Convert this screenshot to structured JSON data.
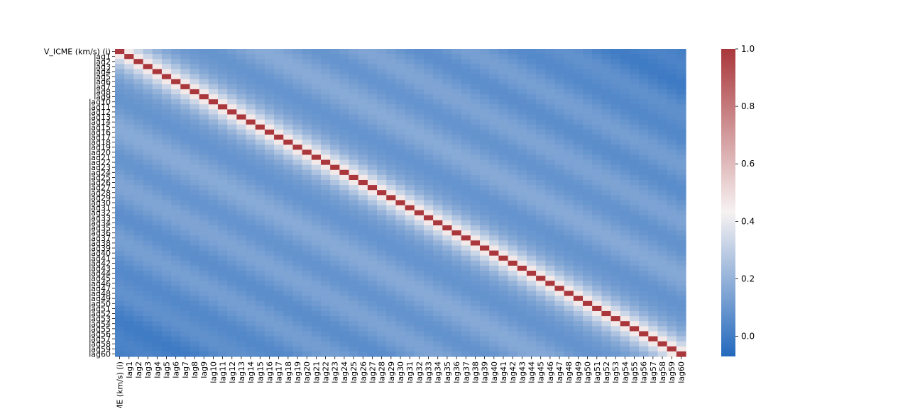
{
  "chart_data": {
    "type": "heatmap",
    "title": "",
    "xlabel": "",
    "ylabel": "",
    "labels": [
      "V_ICME (km/s) (i)",
      "lag1",
      "lag2",
      "lag3",
      "lag4",
      "lag5",
      "lag6",
      "lag7",
      "lag8",
      "lag9",
      "lag10",
      "lag11",
      "lag12",
      "lag13",
      "lag14",
      "lag15",
      "lag16",
      "lag17",
      "lag18",
      "lag19",
      "lag20",
      "lag21",
      "lag22",
      "lag23",
      "lag24",
      "lag25",
      "lag26",
      "lag27",
      "lag28",
      "lag29",
      "lag30",
      "lag31",
      "lag32",
      "lag33",
      "lag34",
      "lag35",
      "lag36",
      "lag37",
      "lag38",
      "lag39",
      "lag40",
      "lag41",
      "lag42",
      "lag43",
      "lag44",
      "lag45",
      "lag46",
      "lag47",
      "lag48",
      "lag49",
      "lag50",
      "lag51",
      "lag52",
      "lag53",
      "lag54",
      "lag55",
      "lag56",
      "lag57",
      "lag58",
      "lag59",
      "lag60"
    ],
    "values_by_distance": {
      "description_free": true,
      "lag_offset": [
        0,
        1,
        2,
        3,
        4,
        5,
        6,
        7,
        8,
        9,
        10,
        11,
        12,
        13,
        14,
        15,
        16,
        17,
        18,
        19,
        20,
        21,
        22,
        23,
        24,
        25,
        26,
        27,
        28,
        29,
        30,
        31,
        32,
        33,
        34,
        35,
        36,
        37,
        38,
        39,
        40,
        41,
        42,
        43,
        44,
        45,
        46,
        47,
        48,
        49,
        50,
        51,
        52,
        53,
        54,
        55,
        56,
        57,
        58,
        59,
        60
      ],
      "correlation": [
        1.0,
        0.46,
        0.33,
        0.26,
        0.2,
        0.16,
        0.13,
        0.11,
        0.1,
        0.09,
        0.09,
        0.1,
        0.12,
        0.14,
        0.16,
        0.17,
        0.17,
        0.16,
        0.14,
        0.12,
        0.1,
        0.09,
        0.09,
        0.1,
        0.12,
        0.14,
        0.15,
        0.15,
        0.14,
        0.12,
        0.1,
        0.08,
        0.07,
        0.07,
        0.08,
        0.1,
        0.12,
        0.13,
        0.13,
        0.12,
        0.1,
        0.08,
        0.06,
        0.05,
        0.05,
        0.06,
        0.07,
        0.08,
        0.08,
        0.07,
        0.05,
        0.03,
        0.01,
        0.0,
        0.0,
        0.01,
        0.02,
        0.03,
        0.03,
        0.02,
        0.01
      ]
    },
    "colorbar": {
      "min": -0.07,
      "max": 1.0,
      "ticks": [
        "0.0",
        "0.2",
        "0.4",
        "0.6",
        "0.8",
        "1.0"
      ],
      "tick_values": [
        0.0,
        0.2,
        0.4,
        0.6,
        0.8,
        1.0
      ]
    },
    "colormap": {
      "low": "#2369bd",
      "mid": "#f7f2f2",
      "high": "#a9373b"
    },
    "grid": false
  }
}
